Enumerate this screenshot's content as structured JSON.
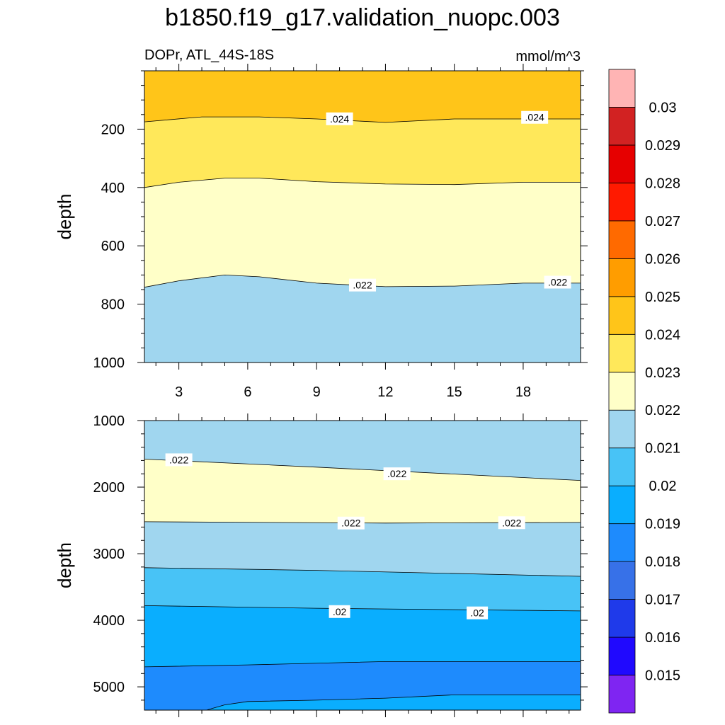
{
  "title": "b1850.f19_g17.validation_nuopc.003",
  "subtitle_left": "DOPr, ATL_44S-18S",
  "units": "mmol/m^3",
  "chart_data": [
    {
      "type": "contour",
      "panel": "upper",
      "ylabel": "depth",
      "xlim": [
        1.5,
        20.5
      ],
      "ylim": [
        0,
        1000
      ],
      "y_inverted": true,
      "x_ticks": [
        3,
        6,
        9,
        12,
        15,
        18
      ],
      "x_tick_labels": [
        "3",
        "6",
        "9",
        "12",
        "15",
        "18"
      ],
      "y_ticks": [
        200,
        400,
        600,
        800,
        1000
      ],
      "y_tick_labels": [
        "200",
        "400",
        "600",
        "800",
        "1000"
      ],
      "bands": [
        {
          "min": 0.024,
          "max": 0.025,
          "color": "#ffc519",
          "boundary_x": [
            1.5,
            4,
            6.5,
            9,
            12,
            15,
            18,
            20.5
          ],
          "boundary_y": [
            175,
            158,
            158,
            165,
            177,
            165,
            165,
            165
          ]
        },
        {
          "min": 0.023,
          "max": 0.024,
          "color": "#ffe85a",
          "boundary_x": [
            1.5,
            3,
            5,
            6.5,
            9,
            12,
            15,
            18,
            20.5
          ],
          "boundary_y": [
            400,
            382,
            368,
            368,
            380,
            388,
            390,
            382,
            382
          ]
        },
        {
          "min": 0.022,
          "max": 0.023,
          "color": "#ffffc8",
          "boundary_x": [
            1.5,
            3,
            5,
            6.5,
            9,
            12,
            15,
            18,
            20.5
          ],
          "boundary_y": [
            742,
            720,
            700,
            706,
            728,
            740,
            738,
            728,
            728
          ]
        },
        {
          "min": 0.021,
          "max": 0.022,
          "color": "#a0d6ef"
        }
      ],
      "contour_labels": [
        {
          "text": ".024",
          "x": 10.0,
          "y": 167
        },
        {
          "text": ".024",
          "x": 18.5,
          "y": 162
        },
        {
          "text": ".022",
          "x": 11.0,
          "y": 737
        },
        {
          "text": ".022",
          "x": 19.5,
          "y": 727
        }
      ]
    },
    {
      "type": "contour",
      "panel": "lower",
      "ylabel": "depth",
      "xlim": [
        1.5,
        20.5
      ],
      "ylim": [
        1000,
        5350
      ],
      "y_inverted": true,
      "x_ticks": [
        3,
        6,
        9,
        12,
        15,
        18
      ],
      "y_ticks": [
        1000,
        2000,
        3000,
        4000,
        5000
      ],
      "y_tick_labels": [
        "1000",
        "2000",
        "3000",
        "4000",
        "5000"
      ],
      "bands": [
        {
          "min": 0.021,
          "max": 0.022,
          "color": "#a0d6ef",
          "boundary_x": [
            1.5,
            9,
            20.5
          ],
          "boundary_y": [
            1580,
            1700,
            1900
          ]
        },
        {
          "min": 0.022,
          "max": 0.023,
          "color": "#ffffc8",
          "boundary_x": [
            1.5,
            12,
            20.5
          ],
          "boundary_y": [
            2520,
            2540,
            2530
          ]
        },
        {
          "min": 0.021,
          "max": 0.022,
          "color": "#a0d6ef",
          "boundary_x": [
            1.5,
            9,
            20.5
          ],
          "boundary_y": [
            3210,
            3250,
            3340
          ]
        },
        {
          "min": 0.02,
          "max": 0.021,
          "color": "#48c3f6",
          "boundary_x": [
            1.5,
            9,
            20.5
          ],
          "boundary_y": [
            3780,
            3820,
            3860
          ]
        },
        {
          "min": 0.019,
          "max": 0.02,
          "color": "#0aaefe",
          "boundary_x": [
            1.5,
            6,
            12,
            20.5
          ],
          "boundary_y": [
            4700,
            4670,
            4620,
            4620
          ]
        },
        {
          "min": 0.018,
          "max": 0.019,
          "color": "#1e8bfd",
          "boundary_x": [
            1.5,
            4.2,
            5,
            6,
            9,
            12,
            15,
            20.5
          ],
          "boundary_y": [
            5350,
            5350,
            5270,
            5220,
            5200,
            5170,
            5120,
            5120
          ]
        },
        {
          "min": 0.019,
          "max": 0.02,
          "color": "#0aaefe"
        }
      ],
      "contour_labels": [
        {
          "text": ".022",
          "x": 3.0,
          "y": 1600
        },
        {
          "text": ".022",
          "x": 12.5,
          "y": 1810
        },
        {
          "text": ".022",
          "x": 10.5,
          "y": 2550
        },
        {
          "text": ".022",
          "x": 17.5,
          "y": 2545
        },
        {
          "text": ".02",
          "x": 10.0,
          "y": 3880
        },
        {
          "text": ".02",
          "x": 16.0,
          "y": 3900
        }
      ]
    }
  ],
  "colorbar": {
    "colors": [
      "#7f25f2",
      "#2009fe",
      "#1f3aea",
      "#3771e8",
      "#1e8bfd",
      "#0aaefe",
      "#48c3f6",
      "#a0d6ef",
      "#ffffc8",
      "#ffe85a",
      "#ffc519",
      "#ff9d00",
      "#ff6a00",
      "#ff1a00",
      "#e60000",
      "#d22222",
      "#ffb4b4"
    ],
    "labels": [
      "0.015",
      "0.016",
      "0.017",
      "0.018",
      "0.019",
      "0.02",
      "0.021",
      "0.022",
      "0.023",
      "0.024",
      "0.025",
      "0.026",
      "0.027",
      "0.028",
      "0.029",
      "0.03"
    ]
  }
}
